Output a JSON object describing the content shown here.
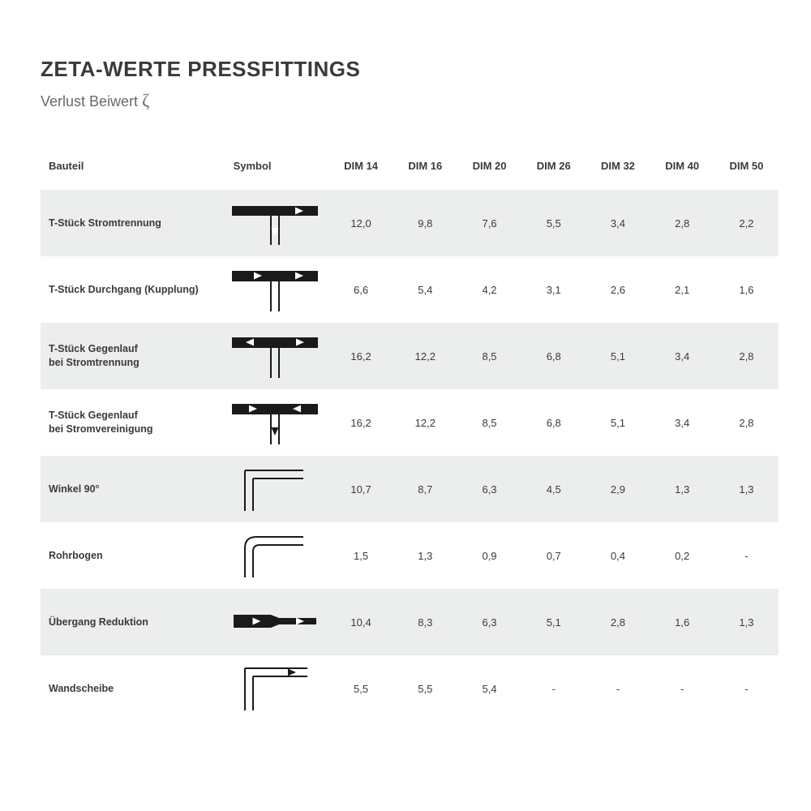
{
  "title": "ZETA-WERTE PRESSFITTINGS",
  "subtitle_prefix": "Verlust Beiwert ",
  "subtitle_symbol": "ζ",
  "colors": {
    "text": "#3a3a3a",
    "subtext": "#6a6a6a",
    "row_shade": "#eceded",
    "row_plain": "#ffffff",
    "symbol_stroke": "#1a1a1a",
    "background": "#ffffff"
  },
  "fontsize": {
    "title": 26,
    "subtitle": 18,
    "header": 13,
    "cell": 13,
    "bauteil": 12.5
  },
  "columns": [
    "Bauteil",
    "Symbol",
    "DIM 14",
    "DIM 16",
    "DIM 20",
    "DIM 26",
    "DIM 32",
    "DIM 40",
    "DIM 50"
  ],
  "rows": [
    {
      "bauteil": "T-Stück Stromtrennung",
      "symbol": "t-split-down",
      "vals": [
        "12,0",
        "9,8",
        "7,6",
        "5,5",
        "3,4",
        "2,8",
        "2,2"
      ]
    },
    {
      "bauteil": "T-Stück Durchgang (Kupplung)",
      "symbol": "t-through",
      "vals": [
        "6,6",
        "5,4",
        "4,2",
        "3,1",
        "2,6",
        "2,1",
        "1,6"
      ]
    },
    {
      "bauteil": "T-Stück Gegenlauf\nbei Stromtrennung",
      "symbol": "t-opposed-sep",
      "vals": [
        "16,2",
        "12,2",
        "8,5",
        "6,8",
        "5,1",
        "3,4",
        "2,8"
      ]
    },
    {
      "bauteil": "T-Stück Gegenlauf\nbei Stromvereinigung",
      "symbol": "t-opposed-join",
      "vals": [
        "16,2",
        "12,2",
        "8,5",
        "6,8",
        "5,1",
        "3,4",
        "2,8"
      ]
    },
    {
      "bauteil": "Winkel 90°",
      "symbol": "elbow-sharp",
      "vals": [
        "10,7",
        "8,7",
        "6,3",
        "4,5",
        "2,9",
        "1,3",
        "1,3"
      ]
    },
    {
      "bauteil": "Rohrbogen",
      "symbol": "elbow-round",
      "vals": [
        "1,5",
        "1,3",
        "0,9",
        "0,7",
        "0,4",
        "0,2",
        "-"
      ]
    },
    {
      "bauteil": "Übergang Reduktion",
      "symbol": "reducer",
      "vals": [
        "10,4",
        "8,3",
        "6,3",
        "5,1",
        "2,8",
        "1,6",
        "1,3"
      ]
    },
    {
      "bauteil": "Wandscheibe",
      "symbol": "wall-elbow",
      "vals": [
        "5,5",
        "5,5",
        "5,4",
        "-",
        "-",
        "-",
        "-"
      ]
    }
  ]
}
